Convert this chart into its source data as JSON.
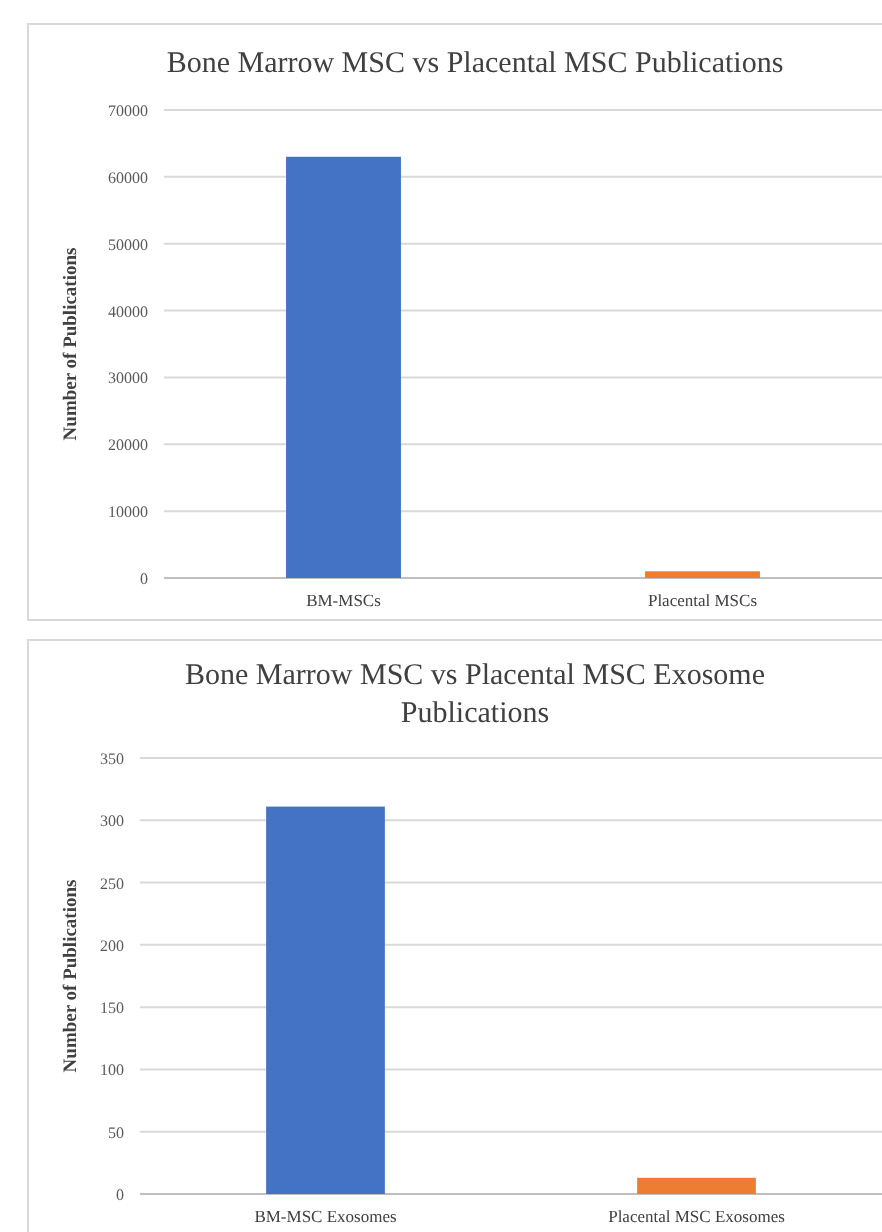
{
  "chart_data": [
    {
      "type": "bar",
      "title": "Bone Marrow MSC vs Placental MSC Publications",
      "ylabel": "Number of Publications",
      "categories": [
        "BM-MSCs",
        "Placental MSCs"
      ],
      "values": [
        63000,
        1000
      ],
      "colors": [
        "#4472c4",
        "#ed7d31"
      ],
      "ylim": [
        0,
        70000
      ],
      "yticks": [
        0,
        10000,
        20000,
        30000,
        40000,
        50000,
        60000,
        70000
      ],
      "grid": "y"
    },
    {
      "type": "bar",
      "title": "Bone Marrow MSC vs Placental MSC Exosome Publications",
      "ylabel": "Number of Publications",
      "categories": [
        "BM-MSC Exosomes",
        "Placental MSC Exosomes"
      ],
      "values": [
        311,
        13
      ],
      "colors": [
        "#4472c4",
        "#ed7d31"
      ],
      "ylim": [
        0,
        350
      ],
      "yticks": [
        0,
        50,
        100,
        150,
        200,
        250,
        300,
        350
      ],
      "grid": "y"
    }
  ]
}
